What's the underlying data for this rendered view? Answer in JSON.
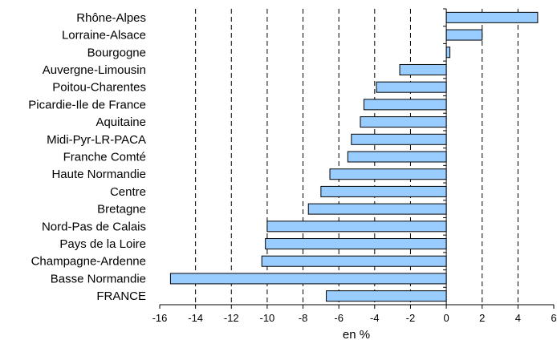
{
  "chart_data": {
    "type": "bar",
    "orientation": "horizontal",
    "categories": [
      "Rhône-Alpes",
      "Lorraine-Alsace",
      "Bourgogne",
      "Auvergne-Limousin",
      "Poitou-Charentes",
      "Picardie-Ile de France",
      "Aquitaine",
      "Midi-Pyr-LR-PACA",
      "Franche Comté",
      "Haute Normandie",
      "Centre",
      "Bretagne",
      "Nord-Pas de Calais",
      "Pays de la Loire",
      "Champagne-Ardenne",
      "Basse Normandie",
      "FRANCE"
    ],
    "values": [
      5.1,
      2.0,
      0.2,
      -2.6,
      -3.9,
      -4.6,
      -4.8,
      -5.3,
      -5.5,
      -6.5,
      -7.0,
      -7.7,
      -10.0,
      -10.1,
      -10.3,
      -15.4,
      -6.7
    ],
    "xlabel": "en %",
    "xlim": [
      -16,
      6
    ],
    "xticks": [
      "-16",
      "-14",
      "-12",
      "-10",
      "-8",
      "-6",
      "-4",
      "-2",
      "0",
      "2",
      "4",
      "6"
    ],
    "gridlines": [
      -14,
      -12,
      -10,
      -8,
      -6,
      -4,
      -2,
      2,
      4
    ],
    "grid_style": "dashed vertical",
    "bar_color": "#99ccff",
    "bar_edge_color": "#000000"
  }
}
